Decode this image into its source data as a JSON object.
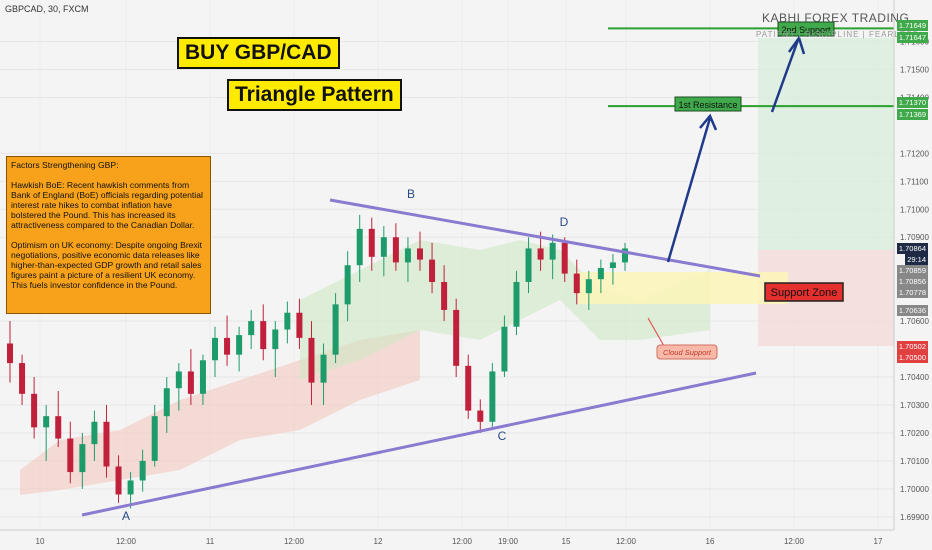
{
  "header": {
    "symbol": "GBPCAD, 30, FXCM",
    "brand": "KABHI FOREX TRADING",
    "tagline": "PATIENT | DISCIPLINE | FEARLESS"
  },
  "titles": {
    "main": "BUY GBP/CAD",
    "sub": "Triangle Pattern"
  },
  "info_box": {
    "heading": "Factors Strengthening GBP:",
    "para1": "Hawkish BoE: Recent hawkish comments from Bank of England (BoE) officials regarding potential interest rate hikes to combat inflation have bolstered the Pound. This has increased its attractiveness compared to the Canadian Dollar.",
    "para2": "Optimism on UK economy: Despite ongoing Brexit negotiations, positive economic data releases like higher-than-expected GDP growth and retail sales figures paint a picture of a resilient UK economy. This fuels investor confidence in the Pound."
  },
  "chart_data": {
    "type": "candlestick",
    "x_ticks": [
      "10",
      "12:00",
      "11",
      "12:00",
      "12",
      "12:00",
      "19:00",
      "15",
      "12:00",
      "16",
      "12:00",
      "17"
    ],
    "y_ticks": [
      "1.71600",
      "1.71500",
      "1.71400",
      "1.71200",
      "1.71100",
      "1.71000",
      "1.70900",
      "1.70600",
      "1.70400",
      "1.70300",
      "1.70200",
      "1.70100",
      "1.70000",
      "1.69900"
    ],
    "ylim": [
      1.6986,
      1.7172
    ],
    "points": [
      {
        "label": "A",
        "price": 1.6993
      },
      {
        "label": "B",
        "price": 1.7097
      },
      {
        "label": "D",
        "price": 1.7091
      },
      {
        "label": "C",
        "price": 1.7022
      }
    ],
    "levels": [
      {
        "name": "2nd Support",
        "price": 1.71647,
        "color": "#2ca02c"
      },
      {
        "name": "1st Resistance",
        "price": 1.71369,
        "color": "#2ca02c"
      }
    ],
    "zones": [
      {
        "name": "Support Zone",
        "from": 1.70636,
        "to": 1.70778
      }
    ],
    "annotations": [
      "Cloud Support"
    ],
    "price_labels": [
      {
        "value": "1.71649",
        "bg": "#3fa94b"
      },
      {
        "value": "1.71647",
        "bg": "#3fa94b"
      },
      {
        "value": "1.71370",
        "bg": "#3fa94b"
      },
      {
        "value": "1.71369",
        "bg": "#3fa94b"
      },
      {
        "value": "1.70864",
        "bg": "#1f2a44"
      },
      {
        "value": "29:14",
        "bg": "#1f2a44"
      },
      {
        "value": "1.70859",
        "bg": "#888888"
      },
      {
        "value": "1.70856",
        "bg": "#888888"
      },
      {
        "value": "1.70778",
        "bg": "#888888"
      },
      {
        "value": "1.70636",
        "bg": "#888888"
      },
      {
        "value": "1.70502",
        "bg": "#e04040"
      },
      {
        "value": "1.70500",
        "bg": "#e04040"
      }
    ],
    "candles": [
      [
        1.7052,
        1.706,
        1.7038,
        1.7045
      ],
      [
        1.7045,
        1.7048,
        1.703,
        1.7034
      ],
      [
        1.7034,
        1.704,
        1.7018,
        1.7022
      ],
      [
        1.7022,
        1.703,
        1.701,
        1.7026
      ],
      [
        1.7026,
        1.7035,
        1.7015,
        1.7018
      ],
      [
        1.7018,
        1.7024,
        1.7002,
        1.7006
      ],
      [
        1.7006,
        1.702,
        1.7,
        1.7016
      ],
      [
        1.7016,
        1.7028,
        1.701,
        1.7024
      ],
      [
        1.7024,
        1.703,
        1.7004,
        1.7008
      ],
      [
        1.7008,
        1.7012,
        1.6995,
        1.6998
      ],
      [
        1.6998,
        1.7006,
        1.6993,
        1.7003
      ],
      [
        1.7003,
        1.7014,
        1.6999,
        1.701
      ],
      [
        1.701,
        1.703,
        1.7008,
        1.7026
      ],
      [
        1.7026,
        1.704,
        1.702,
        1.7036
      ],
      [
        1.7036,
        1.7045,
        1.7028,
        1.7042
      ],
      [
        1.7042,
        1.705,
        1.703,
        1.7034
      ],
      [
        1.7034,
        1.7048,
        1.703,
        1.7046
      ],
      [
        1.7046,
        1.7058,
        1.704,
        1.7054
      ],
      [
        1.7054,
        1.7062,
        1.7044,
        1.7048
      ],
      [
        1.7048,
        1.7058,
        1.7042,
        1.7055
      ],
      [
        1.7055,
        1.7064,
        1.705,
        1.706
      ],
      [
        1.706,
        1.7066,
        1.7046,
        1.705
      ],
      [
        1.705,
        1.706,
        1.704,
        1.7057
      ],
      [
        1.7057,
        1.7067,
        1.7052,
        1.7063
      ],
      [
        1.7063,
        1.7068,
        1.705,
        1.7054
      ],
      [
        1.7054,
        1.706,
        1.703,
        1.7038
      ],
      [
        1.7038,
        1.7052,
        1.703,
        1.7048
      ],
      [
        1.7048,
        1.707,
        1.7045,
        1.7066
      ],
      [
        1.7066,
        1.7085,
        1.706,
        1.708
      ],
      [
        1.708,
        1.7098,
        1.7074,
        1.7093
      ],
      [
        1.7093,
        1.7097,
        1.7078,
        1.7083
      ],
      [
        1.7083,
        1.7094,
        1.7076,
        1.709
      ],
      [
        1.709,
        1.7095,
        1.7078,
        1.7081
      ],
      [
        1.7081,
        1.709,
        1.7074,
        1.7086
      ],
      [
        1.7086,
        1.7092,
        1.7078,
        1.7082
      ],
      [
        1.7082,
        1.7088,
        1.707,
        1.7074
      ],
      [
        1.7074,
        1.708,
        1.706,
        1.7064
      ],
      [
        1.7064,
        1.7068,
        1.704,
        1.7044
      ],
      [
        1.7044,
        1.7048,
        1.7025,
        1.7028
      ],
      [
        1.7028,
        1.7032,
        1.702,
        1.7024
      ],
      [
        1.7024,
        1.7045,
        1.7022,
        1.7042
      ],
      [
        1.7042,
        1.7062,
        1.704,
        1.7058
      ],
      [
        1.7058,
        1.7078,
        1.7055,
        1.7074
      ],
      [
        1.7074,
        1.709,
        1.707,
        1.7086
      ],
      [
        1.7086,
        1.7092,
        1.7078,
        1.7082
      ],
      [
        1.7082,
        1.7091,
        1.7075,
        1.7088
      ],
      [
        1.7088,
        1.709,
        1.7074,
        1.7077
      ],
      [
        1.7077,
        1.7082,
        1.7066,
        1.707
      ],
      [
        1.707,
        1.7078,
        1.7064,
        1.7075
      ],
      [
        1.7075,
        1.7082,
        1.707,
        1.7079
      ],
      [
        1.7079,
        1.7084,
        1.7073,
        1.7081
      ],
      [
        1.7081,
        1.7088,
        1.7078,
        1.7086
      ]
    ]
  },
  "callouts": {
    "resistance": "1st Resistance",
    "support2": "2nd Support",
    "zone": "Support Zone",
    "cloud": "Cloud Support"
  }
}
